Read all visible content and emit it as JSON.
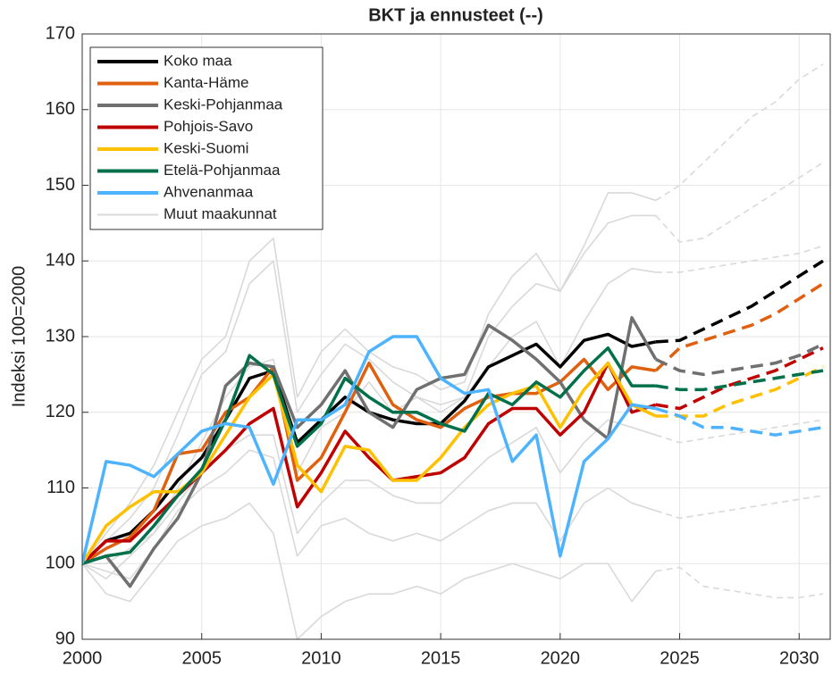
{
  "chart_data": {
    "type": "line",
    "title": "BKT ja ennusteet (--)",
    "y_label": "Indeksi 100=2000",
    "x": [
      2000,
      2001,
      2002,
      2003,
      2004,
      2005,
      2006,
      2007,
      2008,
      2009,
      2010,
      2011,
      2012,
      2013,
      2014,
      2015,
      2016,
      2017,
      2018,
      2019,
      2020,
      2021,
      2022,
      2023,
      2024
    ],
    "forecast_x": [
      2024,
      2025,
      2026,
      2027,
      2028,
      2029,
      2030,
      2031
    ],
    "xlim": [
      2000,
      2031.3
    ],
    "xticks": [
      2000,
      2005,
      2010,
      2015,
      2020,
      2025,
      2030
    ],
    "ylim": [
      90,
      170
    ],
    "yticks": [
      90,
      100,
      110,
      120,
      130,
      140,
      150,
      160,
      170
    ],
    "grid": true,
    "legend": "upper-left",
    "series": [
      {
        "name": "Koko maa",
        "color": "#000000",
        "values": [
          100,
          103,
          104,
          107,
          111,
          114,
          119,
          124.5,
          125.5,
          116,
          119,
          122,
          120,
          119,
          118.5,
          118.5,
          121.5,
          126,
          127.5,
          129,
          126,
          129.5,
          130.3,
          128.7,
          129.3
        ],
        "forecast": [
          129.3,
          129.5,
          131,
          132.5,
          134,
          136,
          138,
          140
        ]
      },
      {
        "name": "Kanta-Häme",
        "color": "#e0600f",
        "values": [
          100,
          102,
          103.5,
          107,
          114.5,
          115,
          120,
          122,
          126,
          111,
          114,
          120,
          126.5,
          121,
          119,
          118,
          120.5,
          122,
          122.5,
          122.5,
          124,
          127,
          123,
          126,
          125.5
        ],
        "forecast": [
          125.5,
          128.5,
          129.5,
          130.5,
          131.5,
          133,
          135,
          137
        ]
      },
      {
        "name": "Keski-Pohjanmaa",
        "color": "#707070",
        "values": [
          100,
          101,
          97,
          102,
          106,
          112,
          123.5,
          126.5,
          126,
          118,
          121,
          125.5,
          120,
          118,
          123,
          124.5,
          125,
          131.5,
          129.5,
          127,
          124,
          119,
          116.5,
          132.5,
          127
        ],
        "forecast": [
          127,
          125.5,
          125,
          125.5,
          126,
          126.5,
          127.5,
          129
        ]
      },
      {
        "name": "Pohjois-Savo",
        "color": "#c00000",
        "values": [
          100,
          103,
          103,
          106,
          109,
          112,
          115,
          118.5,
          120.5,
          107.5,
          112,
          117.5,
          114,
          111,
          111.5,
          112,
          114,
          118.5,
          120.5,
          120.5,
          117,
          120,
          126.5,
          120,
          121
        ],
        "forecast": [
          121,
          120.5,
          122,
          123.5,
          124.5,
          125.5,
          127,
          128.5
        ]
      },
      {
        "name": "Keski-Suomi",
        "color": "#ffc000",
        "values": [
          100,
          105,
          107.5,
          109.5,
          109.5,
          112,
          117,
          122,
          125,
          113,
          109.5,
          115.5,
          115,
          111,
          111,
          114,
          118,
          121,
          122.5,
          123.5,
          118,
          123,
          126.5,
          121,
          119.5
        ],
        "forecast": [
          119.5,
          119.5,
          119.5,
          121,
          122,
          123,
          124.5,
          126
        ]
      },
      {
        "name": "Etelä-Pohjanmaa",
        "color": "#00704a",
        "values": [
          100,
          101,
          101.5,
          105,
          109,
          112.5,
          119,
          127.5,
          125,
          115.5,
          118.5,
          124.5,
          122,
          120,
          120,
          118.5,
          117.5,
          122.5,
          121,
          124,
          122,
          125.5,
          128.5,
          123.5,
          123.5
        ],
        "forecast": [
          123.5,
          123,
          123,
          123.5,
          124,
          124.5,
          125,
          125.5
        ]
      },
      {
        "name": "Ahvenanmaa",
        "color": "#4db3ff",
        "values": [
          100,
          113.5,
          113,
          111.5,
          114.5,
          117.5,
          118.5,
          118,
          110.5,
          119,
          119,
          121,
          128,
          130,
          130,
          124.5,
          122.5,
          123,
          113.5,
          117,
          101,
          113.5,
          116.5,
          121,
          120.5
        ],
        "forecast": [
          120.5,
          119.5,
          118,
          118,
          117.5,
          117,
          117.5,
          118
        ]
      }
    ],
    "others": {
      "name": "Muut maakunnat",
      "color": "#d9d9d9",
      "values": [
        [
          100,
          104,
          108,
          113,
          120,
          127,
          130,
          140,
          143,
          122,
          128,
          131,
          128,
          126,
          125,
          123,
          124,
          133,
          138,
          141,
          136,
          142,
          149,
          149,
          148
        ],
        [
          100,
          103,
          106,
          110,
          117,
          125,
          128,
          137,
          140,
          120,
          125,
          129,
          127,
          124,
          122,
          121,
          122,
          130,
          134,
          137,
          136,
          141,
          145,
          146,
          146
        ],
        [
          100,
          100,
          102,
          104,
          110,
          116,
          122,
          126,
          127,
          112,
          118,
          120,
          124,
          120,
          122,
          120,
          122,
          126,
          130,
          132,
          126,
          132,
          137,
          139,
          138.5
        ],
        [
          100,
          98,
          101,
          104,
          108,
          112,
          115,
          117,
          117,
          104,
          108,
          111,
          111,
          109,
          108,
          108,
          111,
          114,
          116,
          118,
          112,
          116,
          119,
          118,
          117
        ],
        [
          100,
          99,
          98,
          102,
          107,
          110,
          112,
          115,
          114,
          101,
          105,
          106,
          104,
          103,
          104,
          103,
          105,
          107,
          108,
          108,
          103,
          108,
          110,
          108,
          107
        ],
        [
          100,
          96,
          95,
          99,
          103,
          105,
          106,
          108,
          104,
          90,
          93,
          95,
          96,
          96,
          97,
          96,
          98,
          99,
          100,
          99,
          98,
          100,
          100,
          95,
          99
        ]
      ],
      "forecast": [
        [
          148,
          150,
          153,
          156,
          159,
          161,
          164,
          166
        ],
        [
          146,
          142.5,
          143,
          145,
          147,
          149,
          151,
          153
        ],
        [
          138.5,
          138.5,
          139,
          139.5,
          140,
          140.5,
          141,
          142
        ],
        [
          117,
          116,
          116.5,
          117,
          117.5,
          118,
          118.5,
          119
        ],
        [
          107,
          106,
          106.5,
          107,
          107.5,
          108,
          108.5,
          109
        ],
        [
          99,
          99.5,
          97,
          96.5,
          96,
          95.5,
          95.5,
          96
        ]
      ]
    }
  }
}
